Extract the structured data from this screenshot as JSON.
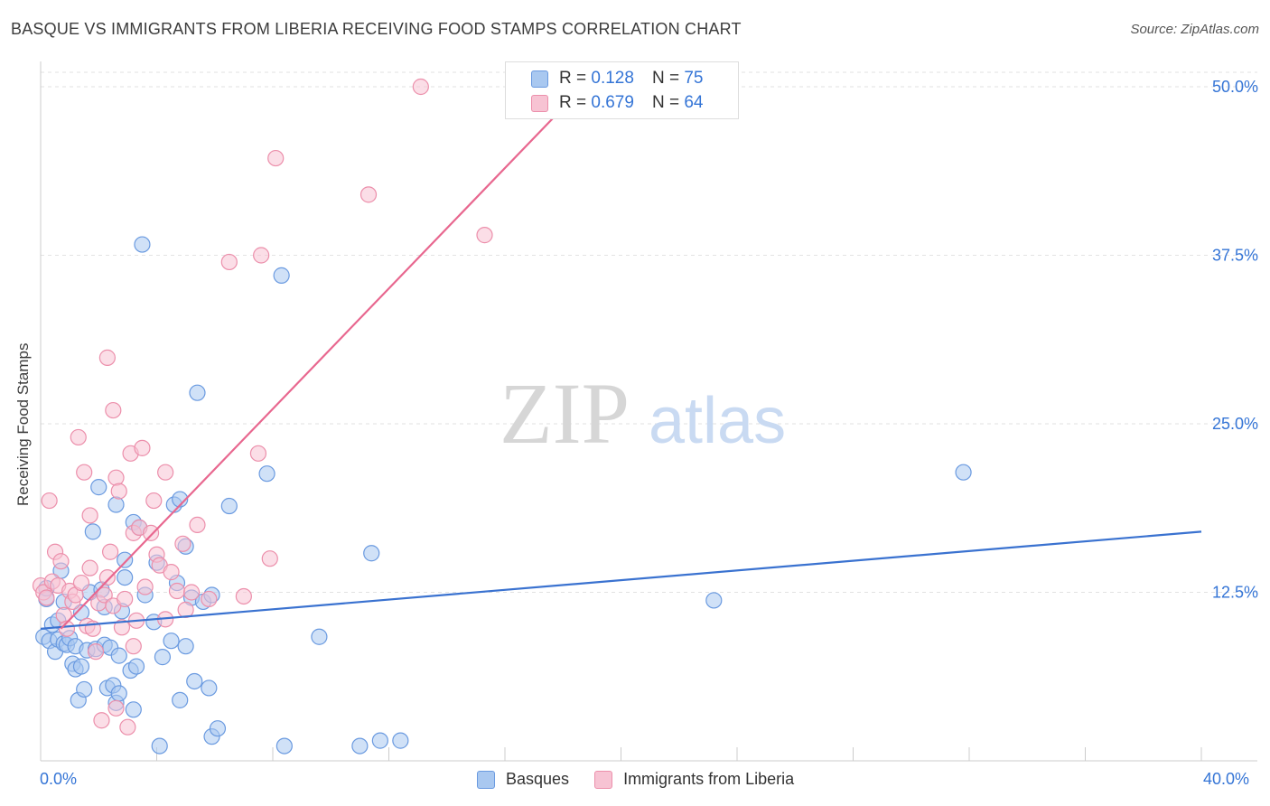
{
  "title": "BASQUE VS IMMIGRANTS FROM LIBERIA RECEIVING FOOD STAMPS CORRELATION CHART",
  "source": "Source: ZipAtlas.com",
  "watermark": {
    "zip": "ZIP",
    "atlas": "atlas"
  },
  "legend": {
    "r_label": "R =",
    "n_label": "N =",
    "rows": [
      {
        "r": "0.128",
        "n": "75",
        "color": "#a9c8f0",
        "border": "#6a9ae0"
      },
      {
        "r": "0.679",
        "n": "64",
        "color": "#f7c3d3",
        "border": "#ec8fab"
      }
    ]
  },
  "chart_data": {
    "type": "scatter",
    "title": "BASQUE VS IMMIGRANTS FROM LIBERIA RECEIVING FOOD STAMPS CORRELATION CHART",
    "xlabel": "",
    "ylabel": "Receiving Food Stamps",
    "xlim": [
      0,
      40
    ],
    "ylim": [
      0,
      50
    ],
    "x_tick_labels": [
      "0.0%",
      "40.0%"
    ],
    "y_ticks": [
      12.5,
      25.0,
      37.5,
      50.0
    ],
    "y_tick_labels": [
      "12.5%",
      "25.0%",
      "37.5%",
      "50.0%"
    ],
    "grid": true,
    "series": [
      {
        "name": "Basques",
        "color": "#6a9ae0",
        "fill": "#a9c8f0",
        "trend": {
          "x": [
            0,
            40
          ],
          "y": [
            9.8,
            17.0
          ],
          "color": "#3a72d0"
        },
        "points": [
          [
            0.1,
            9.2
          ],
          [
            0.2,
            12.0
          ],
          [
            0.3,
            8.9
          ],
          [
            0.4,
            10.1
          ],
          [
            0.5,
            8.1
          ],
          [
            0.6,
            9.0
          ],
          [
            0.6,
            10.4
          ],
          [
            0.7,
            14.1
          ],
          [
            0.8,
            11.8
          ],
          [
            0.8,
            8.7
          ],
          [
            0.9,
            8.6
          ],
          [
            1.0,
            9.1
          ],
          [
            1.1,
            7.2
          ],
          [
            1.2,
            8.5
          ],
          [
            1.2,
            6.8
          ],
          [
            1.3,
            4.5
          ],
          [
            1.4,
            7.0
          ],
          [
            1.4,
            11.0
          ],
          [
            1.5,
            5.3
          ],
          [
            1.6,
            8.2
          ],
          [
            1.7,
            12.5
          ],
          [
            1.8,
            17.0
          ],
          [
            1.9,
            8.3
          ],
          [
            2.0,
            20.3
          ],
          [
            2.1,
            12.7
          ],
          [
            2.2,
            11.4
          ],
          [
            2.2,
            8.6
          ],
          [
            2.3,
            5.4
          ],
          [
            2.4,
            8.4
          ],
          [
            2.5,
            5.6
          ],
          [
            2.6,
            4.3
          ],
          [
            2.6,
            19.0
          ],
          [
            2.7,
            7.8
          ],
          [
            2.7,
            5.0
          ],
          [
            2.8,
            11.1
          ],
          [
            2.9,
            14.9
          ],
          [
            2.9,
            13.6
          ],
          [
            3.1,
            6.7
          ],
          [
            3.2,
            3.8
          ],
          [
            3.2,
            17.7
          ],
          [
            3.3,
            7.0
          ],
          [
            3.4,
            17.3
          ],
          [
            3.5,
            38.3
          ],
          [
            3.6,
            12.3
          ],
          [
            3.9,
            10.3
          ],
          [
            4.0,
            14.7
          ],
          [
            4.1,
            1.1
          ],
          [
            4.2,
            7.7
          ],
          [
            4.5,
            8.9
          ],
          [
            4.6,
            19.0
          ],
          [
            4.7,
            13.2
          ],
          [
            4.8,
            19.4
          ],
          [
            4.8,
            4.5
          ],
          [
            5.0,
            15.9
          ],
          [
            5.0,
            8.5
          ],
          [
            5.2,
            12.1
          ],
          [
            5.3,
            5.9
          ],
          [
            5.4,
            27.3
          ],
          [
            5.6,
            11.8
          ],
          [
            5.8,
            5.4
          ],
          [
            5.9,
            12.3
          ],
          [
            5.9,
            1.8
          ],
          [
            6.1,
            2.4
          ],
          [
            6.5,
            18.9
          ],
          [
            7.8,
            21.3
          ],
          [
            8.3,
            36.0
          ],
          [
            8.4,
            1.1
          ],
          [
            9.6,
            9.2
          ],
          [
            11.0,
            1.1
          ],
          [
            11.4,
            15.4
          ],
          [
            11.7,
            1.5
          ],
          [
            12.4,
            1.5
          ],
          [
            23.2,
            11.9
          ],
          [
            31.8,
            21.4
          ],
          [
            0.2,
            12.8
          ]
        ]
      },
      {
        "name": "Immigrants from Liberia",
        "color": "#ec8fab",
        "fill": "#f7c3d3",
        "trend": {
          "x": [
            0.7,
            18.7
          ],
          "y": [
            9.8,
            50.0
          ],
          "color": "#e8678f"
        },
        "points": [
          [
            0.0,
            13.0
          ],
          [
            0.1,
            12.5
          ],
          [
            0.2,
            12.1
          ],
          [
            0.3,
            19.3
          ],
          [
            0.4,
            13.3
          ],
          [
            0.5,
            15.5
          ],
          [
            0.6,
            13.0
          ],
          [
            0.7,
            14.8
          ],
          [
            0.8,
            10.8
          ],
          [
            0.9,
            9.8
          ],
          [
            1.0,
            12.6
          ],
          [
            1.1,
            11.8
          ],
          [
            1.2,
            12.3
          ],
          [
            1.3,
            24.0
          ],
          [
            1.4,
            13.2
          ],
          [
            1.5,
            21.4
          ],
          [
            1.6,
            10.0
          ],
          [
            1.7,
            18.2
          ],
          [
            1.7,
            14.3
          ],
          [
            1.8,
            9.8
          ],
          [
            1.9,
            8.1
          ],
          [
            2.0,
            11.7
          ],
          [
            2.1,
            3.0
          ],
          [
            2.2,
            12.3
          ],
          [
            2.3,
            13.6
          ],
          [
            2.3,
            29.9
          ],
          [
            2.4,
            15.5
          ],
          [
            2.5,
            11.5
          ],
          [
            2.5,
            26.0
          ],
          [
            2.6,
            3.9
          ],
          [
            2.6,
            21.0
          ],
          [
            2.7,
            20.0
          ],
          [
            2.8,
            9.9
          ],
          [
            2.9,
            12.0
          ],
          [
            3.0,
            2.5
          ],
          [
            3.1,
            22.8
          ],
          [
            3.2,
            16.9
          ],
          [
            3.2,
            8.5
          ],
          [
            3.3,
            10.4
          ],
          [
            3.4,
            17.3
          ],
          [
            3.5,
            23.2
          ],
          [
            3.6,
            12.9
          ],
          [
            3.8,
            16.9
          ],
          [
            3.9,
            19.3
          ],
          [
            4.0,
            15.3
          ],
          [
            4.1,
            14.5
          ],
          [
            4.3,
            21.4
          ],
          [
            4.3,
            10.5
          ],
          [
            4.5,
            14.0
          ],
          [
            4.7,
            12.6
          ],
          [
            4.9,
            16.1
          ],
          [
            5.0,
            11.2
          ],
          [
            5.2,
            12.5
          ],
          [
            5.4,
            17.5
          ],
          [
            5.8,
            12.0
          ],
          [
            6.5,
            37.0
          ],
          [
            7.0,
            12.2
          ],
          [
            7.5,
            22.8
          ],
          [
            7.6,
            37.5
          ],
          [
            7.9,
            15.0
          ],
          [
            8.1,
            44.7
          ],
          [
            11.3,
            42.0
          ],
          [
            13.1,
            50.0
          ],
          [
            15.3,
            39.0
          ]
        ]
      }
    ]
  }
}
